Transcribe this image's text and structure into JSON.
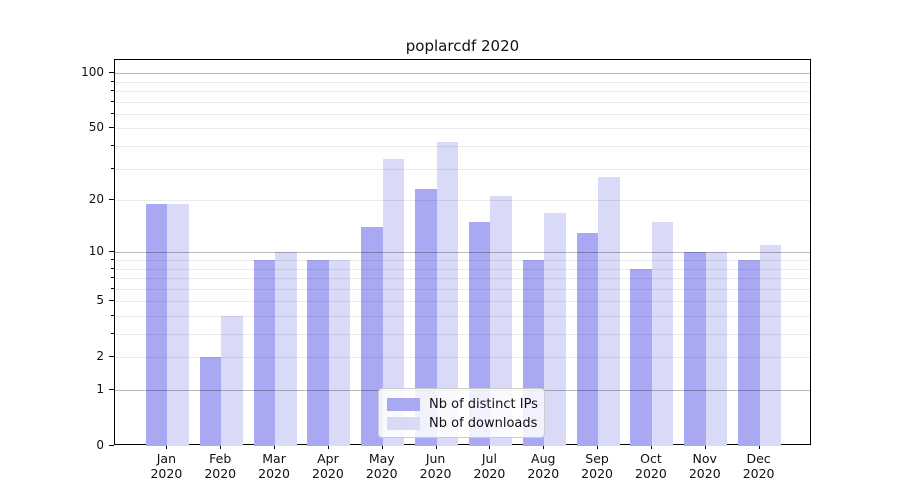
{
  "title": "poplarcdf 2020",
  "colors": {
    "series_distinct_ips": "#a9a9f3",
    "series_downloads": "#d9d9f8",
    "axis": "#000000",
    "grid_minor": "rgba(0,0,0,0.08)",
    "grid_major": "rgba(0,0,0,0.27)",
    "legend_border": "#cccccc"
  },
  "chart_data": {
    "type": "bar",
    "title": "poplarcdf 2020",
    "categories": [
      "Jan 2020",
      "Feb 2020",
      "Mar 2020",
      "Apr 2020",
      "May 2020",
      "Jun 2020",
      "Jul 2020",
      "Aug 2020",
      "Sep 2020",
      "Oct 2020",
      "Nov 2020",
      "Dec 2020"
    ],
    "series": [
      {
        "name": "Nb of distinct IPs",
        "color": "#a9a9f3",
        "values": [
          19,
          2,
          9,
          9,
          14,
          23,
          15,
          9,
          13,
          8,
          10,
          9
        ]
      },
      {
        "name": "Nb of downloads",
        "color": "#d9d9f8",
        "values": [
          19,
          4,
          10,
          9,
          34,
          42,
          21,
          17,
          27,
          15,
          10,
          11
        ]
      }
    ],
    "xlabel": "",
    "ylabel": "",
    "yscale": "log1p",
    "ylim": [
      0,
      118
    ],
    "yticks": [
      0,
      1,
      2,
      5,
      10,
      20,
      50,
      100
    ],
    "minor_gridlines": [
      3,
      4,
      6,
      7,
      8,
      9,
      30,
      40,
      60,
      70,
      80,
      90
    ],
    "emphasized_gridlines": [
      1,
      10,
      100
    ],
    "grid": true,
    "legend_position": "lower center"
  },
  "legend": {
    "items": [
      {
        "label": "Nb of distinct IPs"
      },
      {
        "label": "Nb of downloads"
      }
    ]
  }
}
